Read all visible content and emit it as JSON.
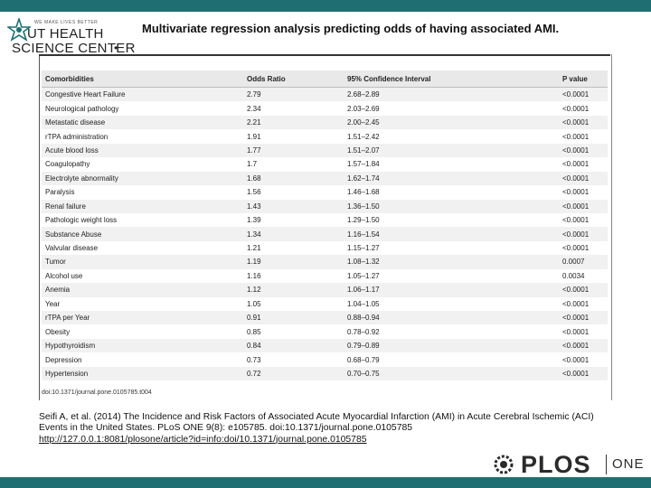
{
  "colors": {
    "bar": "#1f6f72"
  },
  "logo": {
    "small_text": "WE MAKE LIVES BETTER",
    "line1": "UT HEALTH",
    "line2": "SCIENCE CENTER",
    "dot": "•"
  },
  "title": "Multivariate regression analysis predicting odds of having associated AMI.",
  "table": {
    "headers": [
      "Comorbidities",
      "Odds Ratio",
      "95% Confidence Interval",
      "P value"
    ],
    "rows": [
      [
        "Congestive Heart Failure",
        "2.79",
        "2.68–2.89",
        "<0.0001"
      ],
      [
        "Neurological pathology",
        "2.34",
        "2.03–2.69",
        "<0.0001"
      ],
      [
        "Metastatic disease",
        "2.21",
        "2.00–2.45",
        "<0.0001"
      ],
      [
        "rTPA administration",
        "1.91",
        "1.51–2.42",
        "<0.0001"
      ],
      [
        "Acute blood loss",
        "1.77",
        "1.51–2.07",
        "<0.0001"
      ],
      [
        "Coagulopathy",
        "1.7",
        "1.57–1.84",
        "<0.0001"
      ],
      [
        "Electrolyte abnormality",
        "1.68",
        "1.62–1.74",
        "<0.0001"
      ],
      [
        "Paralysis",
        "1.56",
        "1.46–1.68",
        "<0.0001"
      ],
      [
        "Renal failure",
        "1.43",
        "1.36–1.50",
        "<0.0001"
      ],
      [
        "Pathologic weight loss",
        "1.39",
        "1.29–1.50",
        "<0.0001"
      ],
      [
        "Substance Abuse",
        "1.34",
        "1.16–1.54",
        "<0.0001"
      ],
      [
        "Valvular disease",
        "1.21",
        "1.15–1.27",
        "<0.0001"
      ],
      [
        "Tumor",
        "1.19",
        "1.08–1.32",
        "0.0007"
      ],
      [
        "Alcohol use",
        "1.16",
        "1.05–1.27",
        "0.0034"
      ],
      [
        "Anemia",
        "1.12",
        "1.06–1.17",
        "<0.0001"
      ],
      [
        "Year",
        "1.05",
        "1.04–1.05",
        "<0.0001"
      ],
      [
        "rTPA per Year",
        "0.91",
        "0.88–0.94",
        "<0.0001"
      ],
      [
        "Obesity",
        "0.85",
        "0.78–0.92",
        "<0.0001"
      ],
      [
        "Hypothyroidism",
        "0.84",
        "0.79–0.89",
        "<0.0001"
      ],
      [
        "Depression",
        "0.73",
        "0.68–0.79",
        "<0.0001"
      ],
      [
        "Hypertension",
        "0.72",
        "0.70–0.75",
        "<0.0001"
      ]
    ],
    "doi": "doi:10.1371/journal.pone.0105785.t004"
  },
  "citation": {
    "text": "Seifi A, et al. (2014) The Incidence and Risk Factors of Associated Acute Myocardial Infarction (AMI) in Acute Cerebral Ischemic (ACI) Events in the United States. PLoS ONE 9(8): e105785. doi:10.1371/journal.pone.0105785",
    "link": "http://127.0.0.1:8081/plosone/article?id=info:doi/10.1371/journal.pone.0105785"
  },
  "plos": {
    "brand": "PLOS",
    "journal": "ONE"
  }
}
